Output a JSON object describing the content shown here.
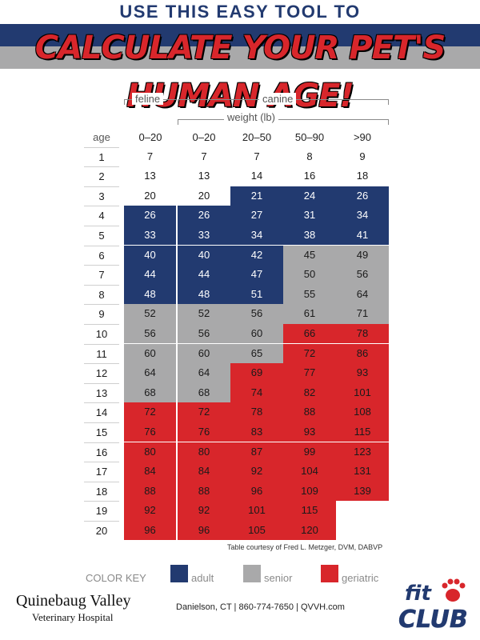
{
  "header": {
    "top_line": "USE THIS EASY TOOL TO",
    "main_line": "CALCULATE YOUR PET'S HUMAN AGE!"
  },
  "groups": {
    "feline": "feline",
    "canine": "canine",
    "weight": "weight (lb)"
  },
  "columns": {
    "age_header": "age",
    "weights": [
      "0–20",
      "0–20",
      "20–50",
      "50–90",
      ">90"
    ]
  },
  "rows": [
    {
      "age": "1",
      "values": [
        "7",
        "7",
        "7",
        "8",
        "9"
      ],
      "status": [
        "white",
        "white",
        "white",
        "white",
        "white"
      ]
    },
    {
      "age": "2",
      "values": [
        "13",
        "13",
        "14",
        "16",
        "18"
      ],
      "status": [
        "white",
        "white",
        "white",
        "white",
        "white"
      ]
    },
    {
      "age": "3",
      "values": [
        "20",
        "20",
        "21",
        "24",
        "26"
      ],
      "status": [
        "white",
        "white",
        "adult",
        "adult",
        "adult"
      ]
    },
    {
      "age": "4",
      "values": [
        "26",
        "26",
        "27",
        "31",
        "34"
      ],
      "status": [
        "adult",
        "adult",
        "adult",
        "adult",
        "adult"
      ]
    },
    {
      "age": "5",
      "values": [
        "33",
        "33",
        "34",
        "38",
        "41"
      ],
      "status": [
        "adult",
        "adult",
        "adult",
        "adult",
        "adult"
      ]
    },
    {
      "age": "6",
      "values": [
        "40",
        "40",
        "42",
        "45",
        "49"
      ],
      "status": [
        "adult",
        "adult",
        "adult",
        "senior",
        "senior"
      ]
    },
    {
      "age": "7",
      "values": [
        "44",
        "44",
        "47",
        "50",
        "56"
      ],
      "status": [
        "adult",
        "adult",
        "adult",
        "senior",
        "senior"
      ]
    },
    {
      "age": "8",
      "values": [
        "48",
        "48",
        "51",
        "55",
        "64"
      ],
      "status": [
        "adult",
        "adult",
        "adult",
        "senior",
        "senior"
      ]
    },
    {
      "age": "9",
      "values": [
        "52",
        "52",
        "56",
        "61",
        "71"
      ],
      "status": [
        "senior",
        "senior",
        "senior",
        "senior",
        "senior"
      ]
    },
    {
      "age": "10",
      "values": [
        "56",
        "56",
        "60",
        "66",
        "78"
      ],
      "status": [
        "senior",
        "senior",
        "senior",
        "geriatric",
        "geriatric"
      ]
    },
    {
      "age": "11",
      "values": [
        "60",
        "60",
        "65",
        "72",
        "86"
      ],
      "status": [
        "senior",
        "senior",
        "senior",
        "geriatric",
        "geriatric"
      ]
    },
    {
      "age": "12",
      "values": [
        "64",
        "64",
        "69",
        "77",
        "93"
      ],
      "status": [
        "senior",
        "senior",
        "geriatric",
        "geriatric",
        "geriatric"
      ]
    },
    {
      "age": "13",
      "values": [
        "68",
        "68",
        "74",
        "82",
        "101"
      ],
      "status": [
        "senior",
        "senior",
        "geriatric",
        "geriatric",
        "geriatric"
      ]
    },
    {
      "age": "14",
      "values": [
        "72",
        "72",
        "78",
        "88",
        "108"
      ],
      "status": [
        "geriatric",
        "geriatric",
        "geriatric",
        "geriatric",
        "geriatric"
      ]
    },
    {
      "age": "15",
      "values": [
        "76",
        "76",
        "83",
        "93",
        "115"
      ],
      "status": [
        "geriatric",
        "geriatric",
        "geriatric",
        "geriatric",
        "geriatric"
      ]
    },
    {
      "age": "16",
      "values": [
        "80",
        "80",
        "87",
        "99",
        "123"
      ],
      "status": [
        "geriatric",
        "geriatric",
        "geriatric",
        "geriatric",
        "geriatric"
      ]
    },
    {
      "age": "17",
      "values": [
        "84",
        "84",
        "92",
        "104",
        "131"
      ],
      "status": [
        "geriatric",
        "geriatric",
        "geriatric",
        "geriatric",
        "geriatric"
      ]
    },
    {
      "age": "18",
      "values": [
        "88",
        "88",
        "96",
        "109",
        "139"
      ],
      "status": [
        "geriatric",
        "geriatric",
        "geriatric",
        "geriatric",
        "geriatric"
      ]
    },
    {
      "age": "19",
      "values": [
        "92",
        "92",
        "101",
        "115",
        ""
      ],
      "status": [
        "geriatric",
        "geriatric",
        "geriatric",
        "geriatric",
        "white"
      ]
    },
    {
      "age": "20",
      "values": [
        "96",
        "96",
        "105",
        "120",
        ""
      ],
      "status": [
        "geriatric",
        "geriatric",
        "geriatric",
        "geriatric",
        "white"
      ]
    }
  ],
  "credit": "Table courtesy of Fred L. Metzger, DVM, DABVP",
  "color_key": {
    "title": "COLOR KEY",
    "items": [
      {
        "label": "adult",
        "color": "#223a70"
      },
      {
        "label": "senior",
        "color": "#a9a9aa"
      },
      {
        "label": "geriatric",
        "color": "#d8262b"
      }
    ]
  },
  "footer": {
    "clinic_name": "Quinebaug Valley",
    "clinic_sub": "Veterinary Hospital",
    "contact": "Danielson, CT | 860-774-7650 | QVVH.com"
  },
  "logo": {
    "word1": "fit",
    "word2": "CLUB"
  },
  "colors": {
    "adult": "#223a70",
    "senior": "#a9a9aa",
    "geriatric": "#d8262b"
  }
}
